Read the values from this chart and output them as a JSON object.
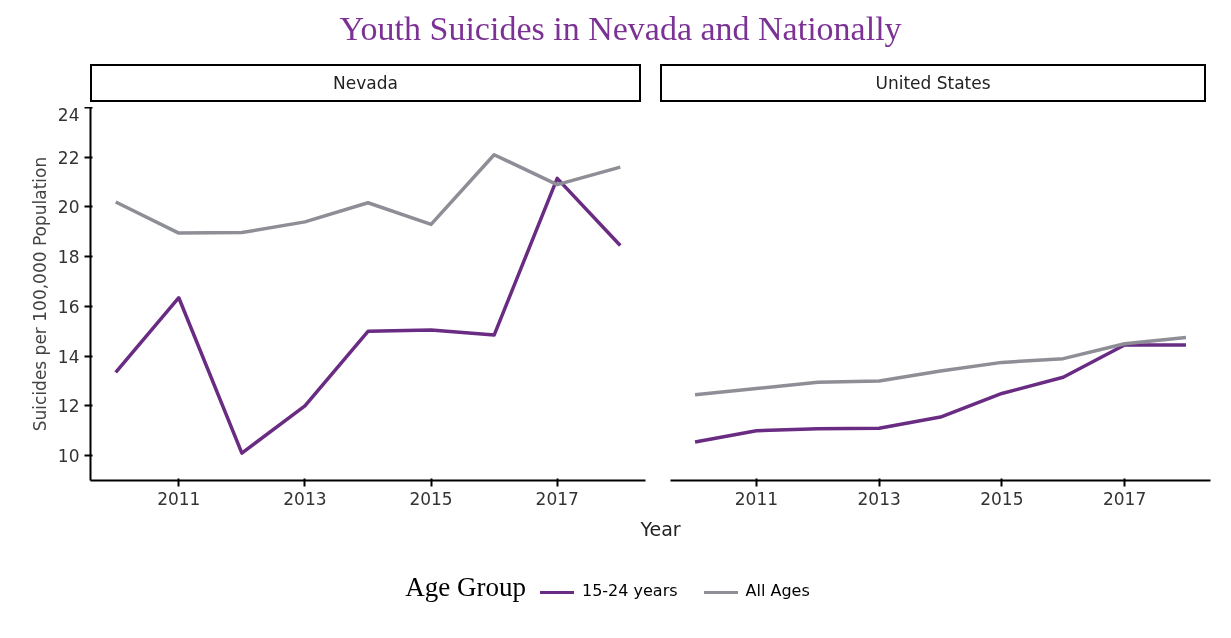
{
  "chart_data": [
    {
      "type": "line",
      "title": "Youth Suicides in Nevada and Nationally",
      "subtitle": "Nevada",
      "xlabel": "Year",
      "ylabel": "Suicides per 100,000 Population",
      "legend_title": "Age Group",
      "legend": "bottom",
      "grid": false,
      "x": [
        2010,
        2011,
        2012,
        2013,
        2014,
        2015,
        2016,
        2017,
        2018
      ],
      "xlim": [
        2009.6,
        2018.4
      ],
      "xticks": [
        2011,
        2013,
        2015,
        2017
      ],
      "ylim": [
        9,
        24
      ],
      "yticks": [
        10,
        12,
        14,
        16,
        18,
        20,
        22,
        24
      ],
      "series": [
        {
          "name": "15-24 years",
          "color": "#6a2c82",
          "values": [
            13.35,
            16.35,
            10.1,
            12.0,
            15.0,
            15.05,
            14.85,
            21.15,
            18.45
          ]
        },
        {
          "name": "All Ages",
          "color": "#8e8e96",
          "values": [
            20.2,
            18.95,
            18.97,
            19.4,
            20.17,
            19.3,
            22.1,
            20.9,
            21.6
          ]
        }
      ]
    },
    {
      "type": "line",
      "subtitle": "United States",
      "tick_labels": "x",
      "grid": false,
      "x": [
        2010,
        2011,
        2012,
        2013,
        2014,
        2015,
        2016,
        2017,
        2018
      ],
      "xlim": [
        2009.6,
        2018.4
      ],
      "xticks": [
        2011,
        2013,
        2015,
        2017
      ],
      "ylim": [
        9,
        24
      ],
      "yticks": [
        10,
        12,
        14,
        16,
        18,
        20,
        22,
        24
      ],
      "series": [
        {
          "color": "#6a2c82",
          "values": [
            10.55,
            11.0,
            11.08,
            11.1,
            11.55,
            12.5,
            13.15,
            14.45,
            14.45
          ]
        },
        {
          "color": "#8e8e96",
          "values": [
            12.45,
            12.7,
            12.95,
            13.0,
            13.4,
            13.75,
            13.9,
            14.5,
            14.75
          ]
        }
      ]
    }
  ]
}
